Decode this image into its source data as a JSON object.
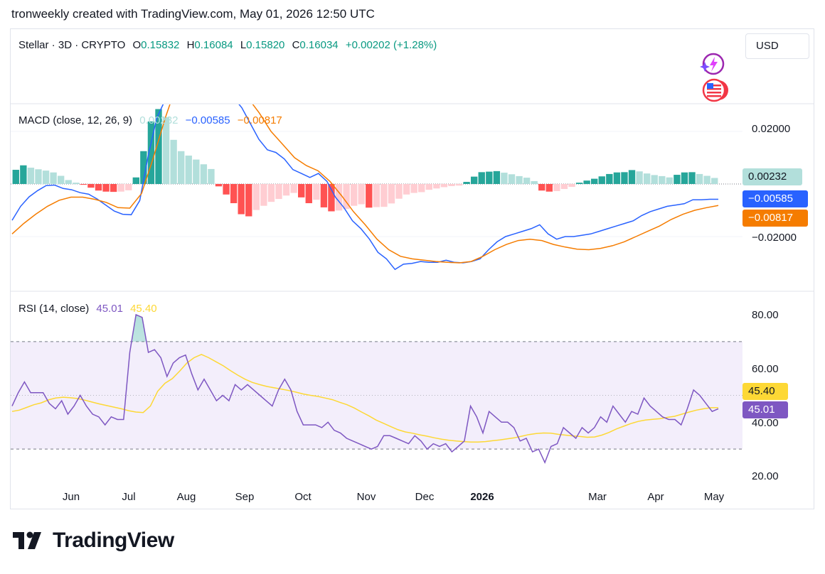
{
  "header": {
    "attribution": "tronweekly created with TradingView.com, May 01, 2026 12:50 UTC"
  },
  "currency_button": "USD",
  "price_legend": {
    "symbol": "Stellar · 3D · CRYPTO",
    "o_label": "O",
    "o_value": "0.15832",
    "h_label": "H",
    "h_value": "0.16084",
    "l_label": "L",
    "l_value": "0.15820",
    "c_label": "C",
    "c_value": "0.16034",
    "change": "+0.00202 (+1.28%)"
  },
  "macd_legend": {
    "title": "MACD (close, 12, 26, 9)",
    "hist": "0.00232",
    "macd": "−0.00585",
    "signal": "−0.00817"
  },
  "rsi_legend": {
    "title": "RSI (14, close)",
    "rsi": "45.01",
    "ma": "45.40"
  },
  "icons": [
    "sparkle-lightning-icon",
    "us-flag-icon"
  ],
  "footer": {
    "wordmark": "TradingView"
  },
  "colors": {
    "macd_line": "#2962ff",
    "signal_line": "#f57c00",
    "hist_pos_strong": "#26a69a",
    "hist_pos_weak": "#b2dfdb",
    "hist_neg_strong": "#ff5252",
    "hist_neg_weak": "#ffcdd2",
    "rsi_line": "#7e57c2",
    "rsi_ma": "#fdd835",
    "rsi_band": "#f3eefb",
    "green_text": "#089981"
  },
  "chart_data": [
    {
      "type": "bar",
      "name": "MACD",
      "y_ticks": [
        "0.02000",
        "−0.02000"
      ],
      "ylim": [
        -0.038,
        0.038
      ],
      "x_ticks": [
        "Jun",
        "Jul",
        "Aug",
        "Sep",
        "Oct",
        "Nov",
        "Dec",
        "2026",
        "Mar",
        "Apr",
        "May"
      ],
      "last_values": {
        "histogram": "0.00232",
        "macd": "−0.00585",
        "signal": "−0.00817"
      },
      "histogram": [
        0.0054,
        0.0071,
        0.0062,
        0.0056,
        0.0051,
        0.0044,
        0.0031,
        0.0015,
        0.0005,
        -0.0003,
        -0.0014,
        -0.0025,
        -0.0029,
        -0.003,
        -0.0029,
        -0.0024,
        0.0025,
        0.0125,
        0.0238,
        0.0285,
        0.0254,
        0.0168,
        0.0125,
        0.0108,
        0.0093,
        0.0075,
        0.0057,
        -0.0009,
        -0.004,
        -0.0073,
        -0.0115,
        -0.0123,
        -0.0099,
        -0.0083,
        -0.0068,
        -0.0057,
        -0.0044,
        -0.0034,
        -0.0051,
        -0.0073,
        -0.006,
        -0.0089,
        -0.0104,
        -0.0101,
        -0.0095,
        -0.0083,
        -0.0077,
        -0.009,
        -0.0088,
        -0.0087,
        -0.0074,
        -0.0056,
        -0.004,
        -0.0034,
        -0.0031,
        -0.0022,
        -0.0017,
        -0.0012,
        -0.0008,
        -0.0006,
        0.0008,
        0.0028,
        0.0045,
        0.0047,
        0.0049,
        0.0043,
        0.0037,
        0.003,
        0.0024,
        0.0011,
        -0.0025,
        -0.0029,
        -0.0027,
        -0.0019,
        -0.0011,
        0.0005,
        0.0013,
        0.002,
        0.0029,
        0.0038,
        0.0044,
        0.0045,
        0.0053,
        0.0048,
        0.004,
        0.0034,
        0.003,
        0.0025,
        0.0035,
        0.0044,
        0.0045,
        0.0038,
        0.0031,
        0.0023
      ],
      "macd": [
        -0.0138,
        -0.0085,
        -0.0049,
        -0.0025,
        -0.0006,
        -0.0004,
        -0.0017,
        -0.0022,
        -0.0033,
        -0.0039,
        -0.0057,
        -0.008,
        -0.0103,
        -0.0115,
        -0.0117,
        -0.0063,
        0.0108,
        0.0251,
        0.032,
        0.046,
        0.052,
        0.046,
        0.048,
        0.05,
        0.045,
        0.04,
        0.033,
        0.029,
        0.023,
        0.017,
        0.013,
        0.012,
        0.0095,
        0.0055,
        0.004,
        0.0025,
        0.004,
        0.001,
        -0.005,
        -0.009,
        -0.014,
        -0.017,
        -0.021,
        -0.026,
        -0.0285,
        -0.0325,
        -0.0305,
        -0.0302,
        -0.0295,
        -0.0298,
        -0.0298,
        -0.029,
        -0.0298,
        -0.03,
        -0.0295,
        -0.0285,
        -0.025,
        -0.022,
        -0.02,
        -0.019,
        -0.018,
        -0.017,
        -0.0155,
        -0.019,
        -0.021,
        -0.02,
        -0.02,
        -0.0195,
        -0.019,
        -0.018,
        -0.017,
        -0.016,
        -0.015,
        -0.014,
        -0.012,
        -0.0105,
        -0.0095,
        -0.0085,
        -0.008,
        -0.0075,
        -0.006,
        -0.006,
        -0.0058,
        -0.0058
      ],
      "signal": [
        -0.019,
        -0.015,
        -0.0115,
        -0.0085,
        -0.0062,
        -0.005,
        -0.005,
        -0.0058,
        -0.007,
        -0.009,
        -0.0092,
        -0.0036,
        0.01,
        0.025,
        0.038,
        0.045,
        0.047,
        0.046,
        0.043,
        0.039,
        0.033,
        0.027,
        0.02,
        0.015,
        0.01,
        0.007,
        0.005,
        0.001,
        -0.0045,
        -0.0105,
        -0.0155,
        -0.021,
        -0.025,
        -0.0275,
        -0.0285,
        -0.029,
        -0.0295,
        -0.0298,
        -0.03,
        -0.0295,
        -0.0275,
        -0.025,
        -0.023,
        -0.0215,
        -0.021,
        -0.0215,
        -0.023,
        -0.024,
        -0.0248,
        -0.025,
        -0.0245,
        -0.0235,
        -0.022,
        -0.02,
        -0.018,
        -0.016,
        -0.0135,
        -0.0115,
        -0.01,
        -0.009,
        -0.0082
      ]
    },
    {
      "type": "line",
      "name": "RSI",
      "y_ticks": [
        "80.00",
        "60.00",
        "40.00",
        "20.00"
      ],
      "ylim": [
        20,
        80
      ],
      "band": [
        30,
        70
      ],
      "midline": 50,
      "last_values": {
        "rsi": "45.01",
        "ma": "45.40"
      },
      "rsi": [
        46,
        51,
        55,
        51,
        51,
        51,
        47,
        45,
        48,
        43,
        46,
        50,
        46,
        43,
        42,
        39,
        42,
        41,
        41,
        66,
        80,
        79,
        66,
        67,
        64,
        57,
        62,
        64,
        65,
        58,
        52,
        56,
        52,
        48,
        50,
        48,
        54,
        52,
        54,
        52,
        50,
        48,
        46,
        52,
        56,
        52,
        44,
        39,
        39,
        39,
        38,
        40,
        37,
        36,
        34,
        33,
        32,
        31,
        30,
        31,
        35,
        35,
        34,
        33,
        32,
        35,
        33,
        30,
        32,
        31,
        32,
        29,
        31,
        33,
        46,
        42,
        36,
        44,
        42,
        40,
        40,
        38,
        33,
        34,
        29,
        30,
        25,
        31,
        32,
        38,
        36,
        34,
        38,
        36,
        38,
        42,
        40,
        46,
        43,
        40,
        44,
        43,
        49,
        46,
        44,
        42,
        41,
        41,
        39,
        45,
        52,
        50,
        47,
        44,
        45
      ],
      "ma": [
        44,
        44.5,
        45.5,
        46.5,
        47.2,
        48.3,
        49,
        49.3,
        49.1,
        48.8,
        48.2,
        47.5,
        46.8,
        46.2,
        45.6,
        45,
        44.3,
        43.8,
        43.6,
        46,
        51.5,
        54.5,
        56.2,
        59,
        62,
        64,
        65.2,
        64,
        62.5,
        61,
        59.2,
        57.5,
        56,
        54.8,
        54,
        53.3,
        52.8,
        52.3,
        51.8,
        51.2,
        50.5,
        50,
        49.6,
        49,
        48.4,
        47.4,
        46.5,
        45.3,
        43.8,
        42.4,
        40.8,
        39.6,
        38.4,
        37.2,
        36.4,
        35.9,
        35.3,
        34.8,
        34.2,
        33.7,
        33.3,
        33,
        32.8,
        32.6,
        32.6,
        32.8,
        33.1,
        33.4,
        33.8,
        34.2,
        34.8,
        35.4,
        35.8,
        36,
        35.9,
        35.5,
        35.2,
        34.9,
        34.7,
        34.4,
        34.5,
        35.2,
        36.2,
        37.5,
        38.5,
        39.5,
        40.3,
        40.8,
        41.1,
        41.3,
        41.8,
        42.2,
        43,
        43.8,
        44.5,
        45,
        45.4,
        45.4
      ]
    }
  ]
}
